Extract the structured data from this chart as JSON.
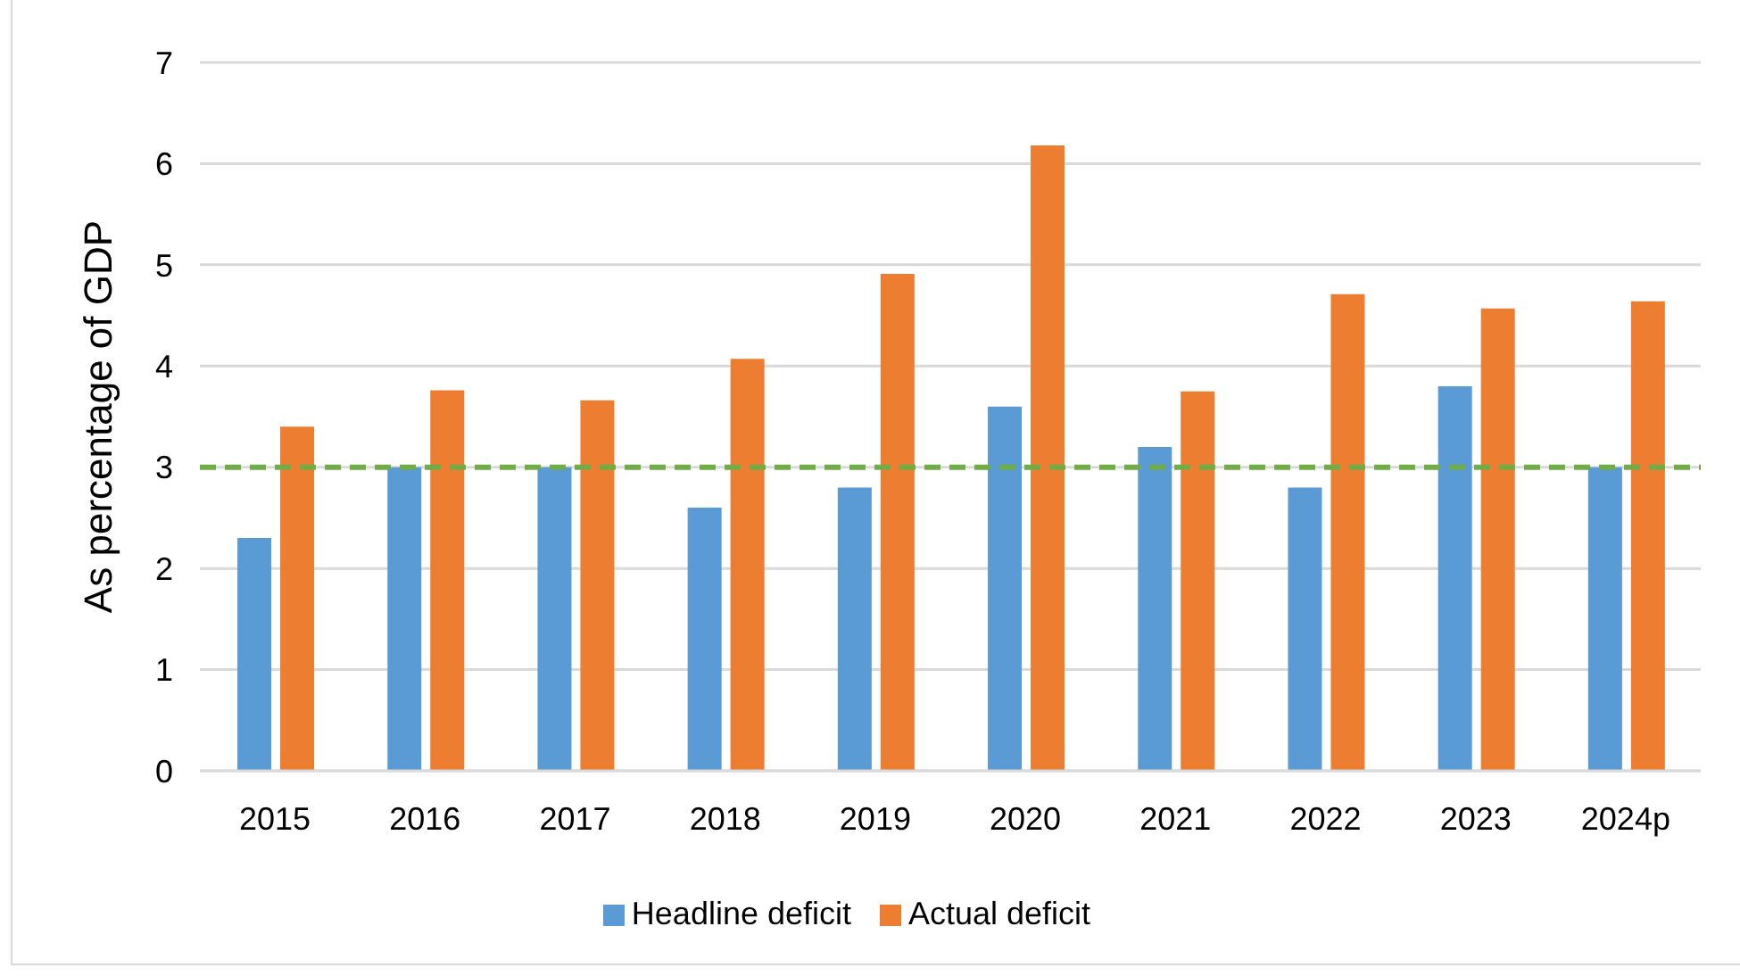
{
  "chart_data": {
    "type": "bar",
    "ylabel": "As percentage of GDP",
    "categories": [
      "2015",
      "2016",
      "2017",
      "2018",
      "2019",
      "2020",
      "2021",
      "2022",
      "2023",
      "2024p"
    ],
    "series": [
      {
        "name": "Headline deficit",
        "color": "#5b9bd5",
        "values": [
          2.3,
          3.0,
          3.0,
          2.6,
          2.8,
          3.6,
          3.2,
          2.8,
          3.8,
          3.0
        ]
      },
      {
        "name": "Actual deficit",
        "color": "#ed7d31",
        "values": [
          3.4,
          3.76,
          3.66,
          4.07,
          4.91,
          6.18,
          3.75,
          4.71,
          4.57,
          4.64
        ]
      }
    ],
    "ylim": [
      0,
      7
    ],
    "yticks": [
      0,
      1,
      2,
      3,
      4,
      5,
      6,
      7
    ],
    "grid": "y",
    "legend": "bottom",
    "ref_lines": [
      {
        "axis": "y",
        "value": 3,
        "color": "#70ad47",
        "line_style": "dashed"
      }
    ]
  }
}
